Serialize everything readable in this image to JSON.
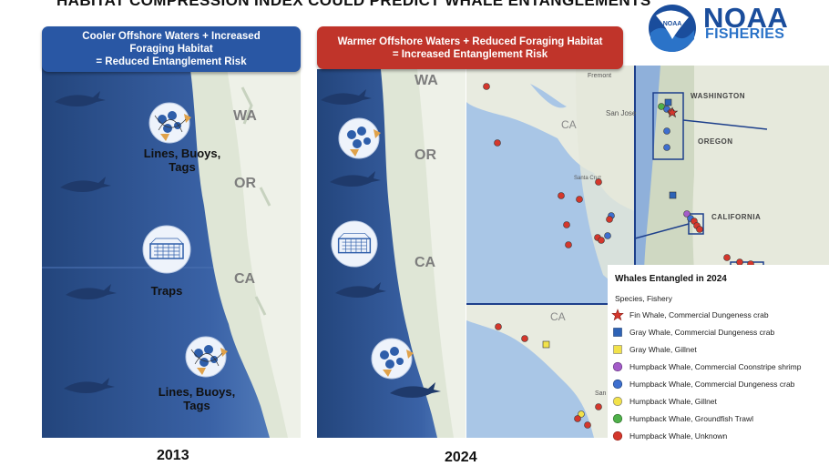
{
  "title": "HABITAT COMPRESSION INDEX COULD PREDICT WHALE ENTANGLEMENTS",
  "logo": {
    "agency": "NOAA",
    "division": "FISHERIES",
    "colors": {
      "navy": "#1a4d9c",
      "blue": "#2b73c8"
    }
  },
  "left": {
    "banner": [
      "Cooler Offshore Waters + Increased",
      "Foraging Habitat",
      "= Reduced Entanglement Risk"
    ],
    "banner_color": "#2957a4",
    "year": "2013",
    "states": [
      "WA",
      "OR",
      "CA"
    ],
    "labels": {
      "top_gear": [
        "Lines, Buoys,",
        "Tags"
      ],
      "traps": "Traps",
      "bottom_gear": [
        "Lines, Buoys,",
        "Tags"
      ]
    }
  },
  "right": {
    "banner": [
      "Warmer Offshore Waters + Reduced Foraging Habitat",
      "= Increased Entanglement Risk"
    ],
    "banner_color": "#c0342a",
    "year": "2024",
    "states": [
      "WA",
      "OR",
      "CA"
    ]
  },
  "map": {
    "states": [
      "WASHINGTON",
      "OREGON",
      "CALIFORNIA"
    ],
    "ca_labels": [
      "CA",
      "CA"
    ],
    "cities": [
      "Fremont",
      "San Jose",
      "Santa Cruz",
      "San"
    ]
  },
  "legend": {
    "title": "Whales Entangled in 2024",
    "subtitle": "Species, Fishery",
    "items": [
      {
        "label": "Fin Whale, Commercial Dungeness crab",
        "symbol": "star",
        "color": "#d4372c"
      },
      {
        "label": "Gray Whale, Commercial Dungeness crab",
        "symbol": "square",
        "color": "#2e63b6"
      },
      {
        "label": "Gray Whale, Gillnet",
        "symbol": "square",
        "color": "#f2e24a"
      },
      {
        "label": "Humpback Whale, Commercial Coonstripe shrimp",
        "symbol": "circle",
        "color": "#a45cc9"
      },
      {
        "label": "Humpback Whale, Commercial Dungeness crab",
        "symbol": "circle",
        "color": "#3e6fcf"
      },
      {
        "label": "Humpback Whale, Gillnet",
        "symbol": "circle",
        "color": "#f2e24a"
      },
      {
        "label": "Humpback Whale, Groundfish Trawl",
        "symbol": "circle",
        "color": "#4fb04a"
      },
      {
        "label": "Humpback Whale, Unknown",
        "symbol": "circle",
        "color": "#d4372c"
      }
    ]
  }
}
